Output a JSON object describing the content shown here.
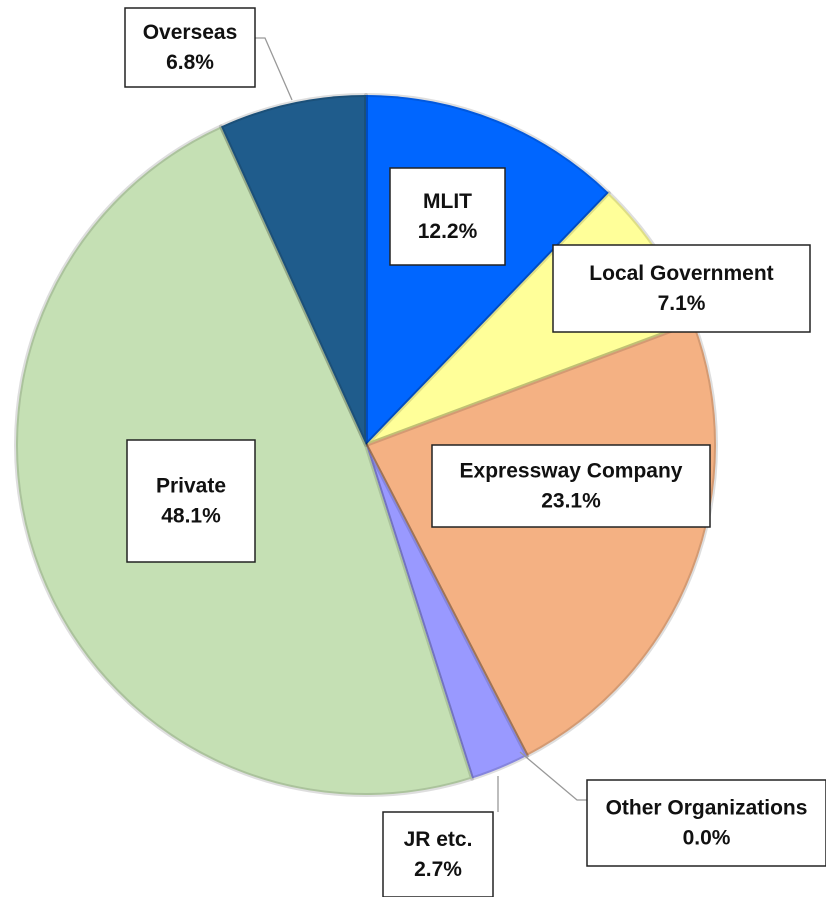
{
  "chart_data": {
    "type": "pie",
    "categories": [
      "MLIT",
      "Local Government",
      "Expressway Company",
      "Other Organizations",
      "JR etc.",
      "Private",
      "Overseas"
    ],
    "values": [
      12.2,
      7.1,
      23.1,
      0.0,
      2.7,
      48.1,
      6.8
    ],
    "value_labels": [
      "12.2%",
      "7.1%",
      "23.1%",
      "0.0%",
      "2.7%",
      "48.1%",
      "6.8%"
    ],
    "colors": [
      "#0066ff",
      "#ffff99",
      "#f4b183",
      "#7f7f7f",
      "#9999ff",
      "#c5e0b4",
      "#1f5c8c"
    ]
  }
}
